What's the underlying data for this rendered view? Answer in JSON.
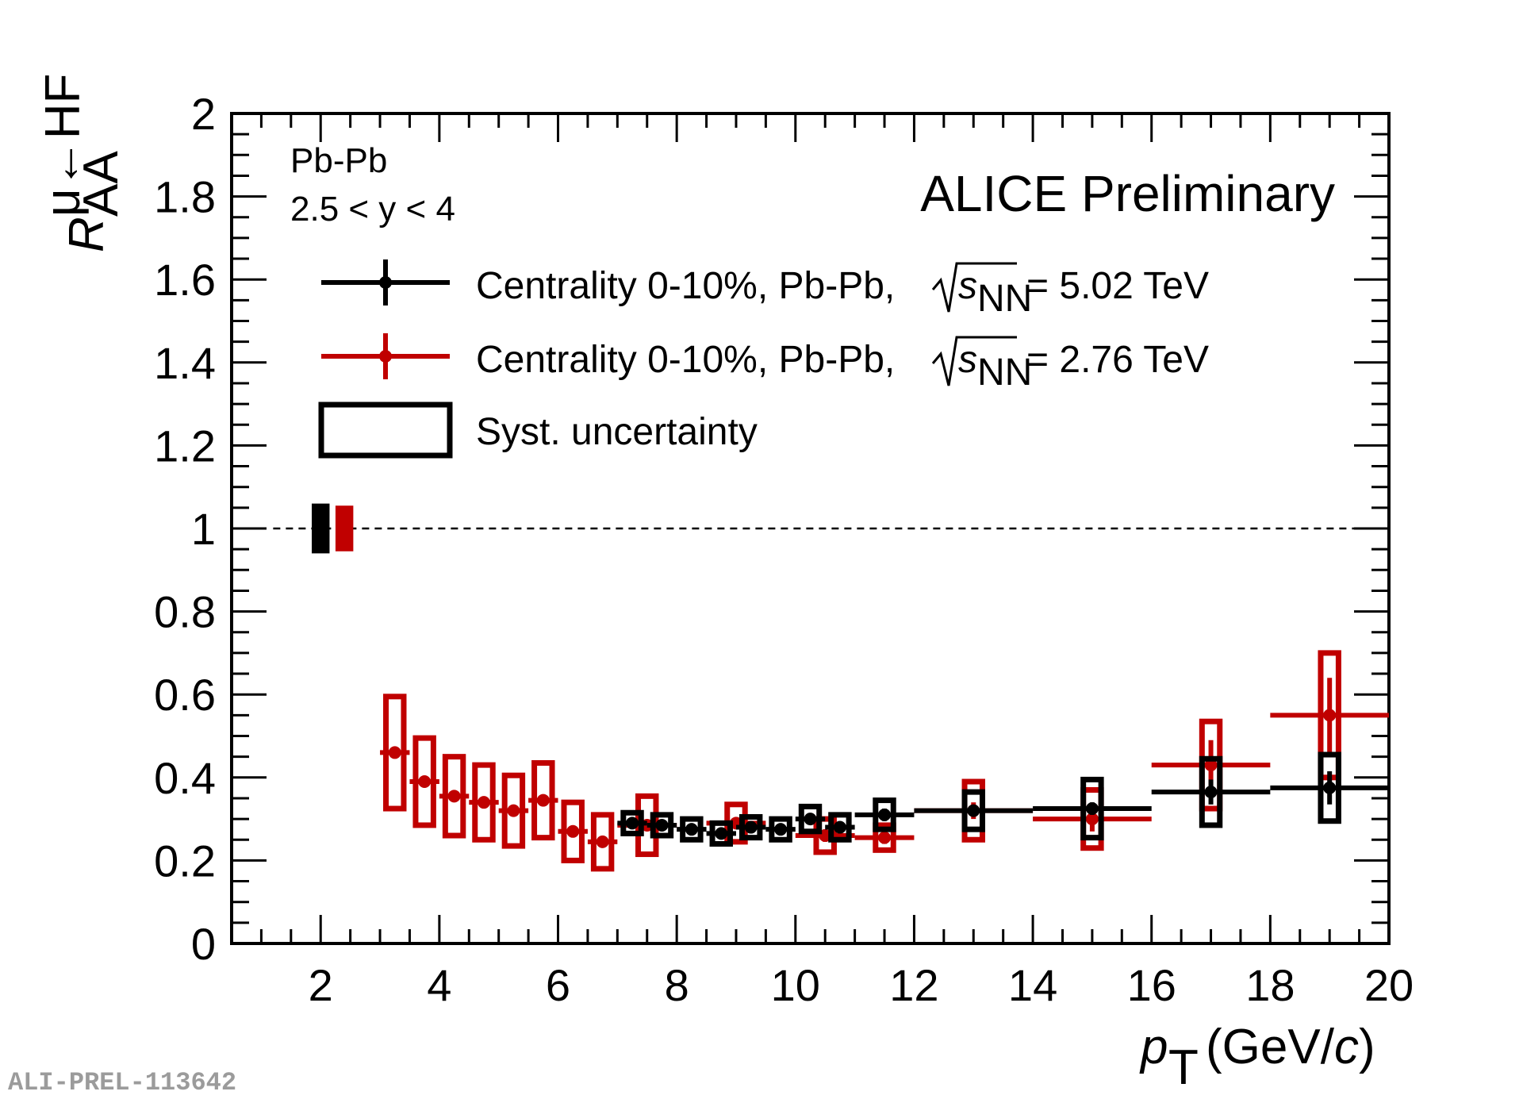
{
  "chart_data": {
    "type": "scatter",
    "title": "ALICE Preliminary",
    "xlabel": "p_T (GeV/c)",
    "ylabel": "R_AA^{μ←HF}",
    "xlim": [
      0.5,
      20
    ],
    "ylim": [
      0,
      2
    ],
    "x_ticks": [
      "2",
      "4",
      "6",
      "8",
      "10",
      "12",
      "14",
      "16",
      "18",
      "20"
    ],
    "y_ticks": [
      "0",
      "0.2",
      "0.4",
      "0.6",
      "0.8",
      "1",
      "1.2",
      "1.4",
      "1.6",
      "1.8",
      "2"
    ],
    "reference_line": 1,
    "annotations": {
      "system": "Pb-Pb",
      "rapidity": "2.5 < y < 4"
    },
    "normalization_boxes": [
      {
        "series": "5.02 TeV",
        "x": 2.0,
        "y_low": 0.94,
        "y_high": 1.06,
        "color": "#000000"
      },
      {
        "series": "2.76 TeV",
        "x": 2.4,
        "y_low": 0.945,
        "y_high": 1.055,
        "color": "#c00000"
      }
    ],
    "series": [
      {
        "name": "5.02 TeV",
        "color": "#000000",
        "x": [
          7.25,
          7.75,
          8.25,
          8.75,
          9.25,
          9.75,
          10.25,
          10.75,
          11.5,
          13,
          15,
          17,
          19
        ],
        "y": [
          0.29,
          0.285,
          0.275,
          0.265,
          0.28,
          0.275,
          0.3,
          0.28,
          0.31,
          0.32,
          0.325,
          0.365,
          0.375
        ],
        "x_err": [
          0.25,
          0.25,
          0.25,
          0.25,
          0.25,
          0.25,
          0.25,
          0.25,
          0.5,
          1,
          1,
          1,
          1
        ],
        "y_err": [
          0.01,
          0.01,
          0.01,
          0.01,
          0.01,
          0.01,
          0.012,
          0.012,
          0.015,
          0.012,
          0.015,
          0.03,
          0.04
        ],
        "syst": [
          0.025,
          0.025,
          0.025,
          0.025,
          0.025,
          0.025,
          0.03,
          0.03,
          0.035,
          0.045,
          0.07,
          0.08,
          0.08
        ]
      },
      {
        "name": "2.76 TeV",
        "color": "#c00000",
        "x": [
          3.25,
          3.75,
          4.25,
          4.75,
          5.25,
          5.75,
          6.25,
          6.75,
          7.5,
          9.0,
          10.5,
          11.5,
          13,
          15,
          17,
          19
        ],
        "y": [
          0.46,
          0.39,
          0.355,
          0.34,
          0.32,
          0.345,
          0.27,
          0.245,
          0.285,
          0.29,
          0.26,
          0.255,
          0.32,
          0.3,
          0.43,
          0.55
        ],
        "x_err": [
          0.25,
          0.25,
          0.25,
          0.25,
          0.25,
          0.25,
          0.25,
          0.25,
          0.5,
          0.5,
          0.5,
          0.5,
          1,
          1,
          1,
          1
        ],
        "y_err": [
          0.01,
          0.01,
          0.01,
          0.01,
          0.01,
          0.01,
          0.01,
          0.01,
          0.012,
          0.012,
          0.015,
          0.015,
          0.02,
          0.03,
          0.06,
          0.09
        ],
        "syst": [
          0.135,
          0.105,
          0.095,
          0.09,
          0.085,
          0.09,
          0.07,
          0.065,
          0.07,
          0.045,
          0.04,
          0.03,
          0.07,
          0.07,
          0.105,
          0.15
        ]
      }
    ],
    "legend": {
      "placement": "upper-left",
      "entries": [
        {
          "label_pre": "Centrality 0-10%, Pb-Pb,",
          "s": "s",
          "sub": "NN",
          "label_post": "= 5.02 TeV",
          "color": "#000000"
        },
        {
          "label_pre": "Centrality 0-10%, Pb-Pb,",
          "s": "s",
          "sub": "NN",
          "label_post": "= 2.76 TeV",
          "color": "#c00000"
        },
        {
          "label": "Syst. uncertainty",
          "color": "#000000"
        }
      ]
    }
  },
  "figure_id": "ALI-PREL-113642"
}
